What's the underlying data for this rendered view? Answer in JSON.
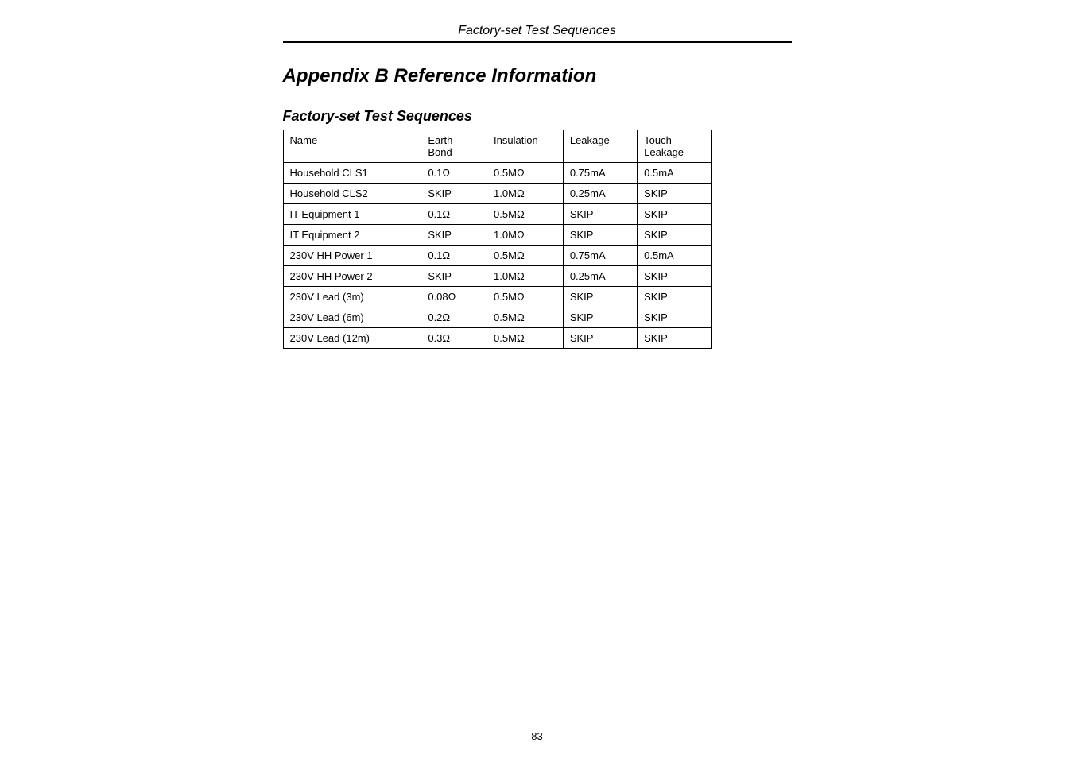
{
  "page": {
    "header": "Factory-set Test Sequences",
    "appendixTitle": "Appendix B   Reference Information",
    "sectionTitle": "Factory-set Test Sequences",
    "pageNumber": "83"
  },
  "table": {
    "headers": {
      "name": "Name",
      "earth1": "Earth",
      "earth2": "Bond",
      "insulation": "Insulation",
      "leakage": "Leakage",
      "touch1": "Touch",
      "touch2": "Leakage"
    },
    "rows": [
      {
        "name": "Household CLS1",
        "earth": "0.1Ω",
        "ins": "0.5MΩ",
        "leak": "0.75mA",
        "touch": "0.5mA"
      },
      {
        "name": "Household CLS2",
        "earth": "SKIP",
        "ins": "1.0MΩ",
        "leak": "0.25mA",
        "touch": "SKIP"
      },
      {
        "name": "IT Equipment 1",
        "earth": "0.1Ω",
        "ins": "0.5MΩ",
        "leak": "SKIP",
        "touch": "SKIP"
      },
      {
        "name": "IT Equipment 2",
        "earth": "SKIP",
        "ins": "1.0MΩ",
        "leak": "SKIP",
        "touch": "SKIP"
      },
      {
        "name": "230V HH Power 1",
        "earth": "0.1Ω",
        "ins": "0.5MΩ",
        "leak": "0.75mA",
        "touch": "0.5mA"
      },
      {
        "name": "230V HH Power 2",
        "earth": "SKIP",
        "ins": "1.0MΩ",
        "leak": "0.25mA",
        "touch": "SKIP"
      },
      {
        "name": "230V Lead (3m)",
        "earth": "0.08Ω",
        "ins": "0.5MΩ",
        "leak": "SKIP",
        "touch": "SKIP"
      },
      {
        "name": "230V Lead (6m)",
        "earth": "0.2Ω",
        "ins": "0.5MΩ",
        "leak": "SKIP",
        "touch": "SKIP"
      },
      {
        "name": "230V Lead (12m)",
        "earth": "0.3Ω",
        "ins": "0.5MΩ",
        "leak": "SKIP",
        "touch": "SKIP"
      }
    ]
  }
}
